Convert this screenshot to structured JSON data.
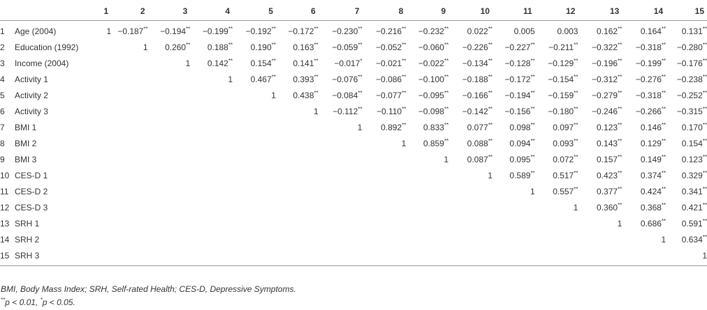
{
  "header": [
    "",
    "",
    "1",
    "2",
    "3",
    "4",
    "5",
    "6",
    "7",
    "8",
    "9",
    "10",
    "11",
    "12",
    "13",
    "14",
    "15"
  ],
  "rows": [
    {
      "num": "1",
      "label": "Age (2004)",
      "cells": [
        "1",
        "−0.187**",
        "−0.194**",
        "−0.199**",
        "−0.192**",
        "−0.172**",
        "−0.230**",
        "−0.216**",
        "−0.232**",
        "0.022**",
        "0.005",
        "0.003",
        "0.162**",
        "0.164**",
        "0.131**"
      ]
    },
    {
      "num": "2",
      "label": "Education (1992)",
      "cells": [
        "",
        "1",
        "0.260**",
        "0.188**",
        "0.190**",
        "0.163**",
        "−0.059**",
        "−0.052**",
        "−0.060**",
        "−0.226**",
        "−0.227**",
        "−0.211**",
        "−0.322**",
        "−0.318**",
        "−0.280**"
      ]
    },
    {
      "num": "3",
      "label": "Income (2004)",
      "cells": [
        "",
        "",
        "1",
        "0.142**",
        "0.154**",
        "0.141**",
        "−0.017*",
        "−0.021**",
        "−0.022**",
        "−0.134**",
        "−0.128**",
        "−0.129**",
        "−0.196**",
        "−0.199**",
        "−0.176**"
      ]
    },
    {
      "num": "4",
      "label": "Activity 1",
      "cells": [
        "",
        "",
        "",
        "1",
        "0.467**",
        "0.393**",
        "−0.076**",
        "−0.086**",
        "−0.100**",
        "−0.188**",
        "−0.172**",
        "−0.154**",
        "−0.312**",
        "−0.276**",
        "−0.238**"
      ]
    },
    {
      "num": "5",
      "label": "Activity 2",
      "cells": [
        "",
        "",
        "",
        "",
        "1",
        "0.438**",
        "−0.084**",
        "−0.077**",
        "−0.095**",
        "−0.166**",
        "−0.194**",
        "−0.159**",
        "−0.279**",
        "−0.318**",
        "−0.252**"
      ]
    },
    {
      "num": "6",
      "label": "Activity 3",
      "cells": [
        "",
        "",
        "",
        "",
        "",
        "1",
        "−0.112**",
        "−0.110**",
        "−0.098**",
        "−0.142**",
        "−0.156**",
        "−0.180**",
        "−0.246**",
        "−0.266**",
        "−0.315**"
      ]
    },
    {
      "num": "7",
      "label": "BMI 1",
      "cells": [
        "",
        "",
        "",
        "",
        "",
        "",
        "1",
        "0.892**",
        "0.833**",
        "0.077**",
        "0.098**",
        "0.097**",
        "0.123**",
        "0.146**",
        "0.170**"
      ]
    },
    {
      "num": "8",
      "label": "BMI 2",
      "cells": [
        "",
        "",
        "",
        "",
        "",
        "",
        "",
        "1",
        "0.859**",
        "0.088**",
        "0.094**",
        "0.093**",
        "0.143**",
        "0.129**",
        "0.154**"
      ]
    },
    {
      "num": "9",
      "label": "BMI 3",
      "cells": [
        "",
        "",
        "",
        "",
        "",
        "",
        "",
        "",
        "1",
        "0.087**",
        "0.095**",
        "0.072**",
        "0.157**",
        "0.149**",
        "0.123**"
      ]
    },
    {
      "num": "10",
      "label": "CES-D 1",
      "cells": [
        "",
        "",
        "",
        "",
        "",
        "",
        "",
        "",
        "",
        "1",
        "0.589**",
        "0.517**",
        "0.423**",
        "0.374**",
        "0.329**"
      ]
    },
    {
      "num": "11",
      "label": "CES-D 2",
      "cells": [
        "",
        "",
        "",
        "",
        "",
        "",
        "",
        "",
        "",
        "",
        "1",
        "0.557**",
        "0.377**",
        "0.424**",
        "0.341**"
      ]
    },
    {
      "num": "12",
      "label": "CES-D 3",
      "cells": [
        "",
        "",
        "",
        "",
        "",
        "",
        "",
        "",
        "",
        "",
        "",
        "1",
        "0.360**",
        "0.368**",
        "0.421**"
      ]
    },
    {
      "num": "13",
      "label": "SRH 1",
      "cells": [
        "",
        "",
        "",
        "",
        "",
        "",
        "",
        "",
        "",
        "",
        "",
        "",
        "1",
        "0.686**",
        "0.591**"
      ]
    },
    {
      "num": "14",
      "label": "SRH 2",
      "cells": [
        "",
        "",
        "",
        "",
        "",
        "",
        "",
        "",
        "",
        "",
        "",
        "",
        "",
        "1",
        "0.634**"
      ]
    },
    {
      "num": "15",
      "label": "SRH 3",
      "cells": [
        "",
        "",
        "",
        "",
        "",
        "",
        "",
        "",
        "",
        "",
        "",
        "",
        "",
        "",
        "1"
      ]
    }
  ],
  "footnotes": {
    "abbrev": "BMI, Body Mass Index; SRH, Self-rated Health; CES-D, Depressive Symptoms.",
    "significance": "**p < 0.01, *p < 0.05."
  }
}
